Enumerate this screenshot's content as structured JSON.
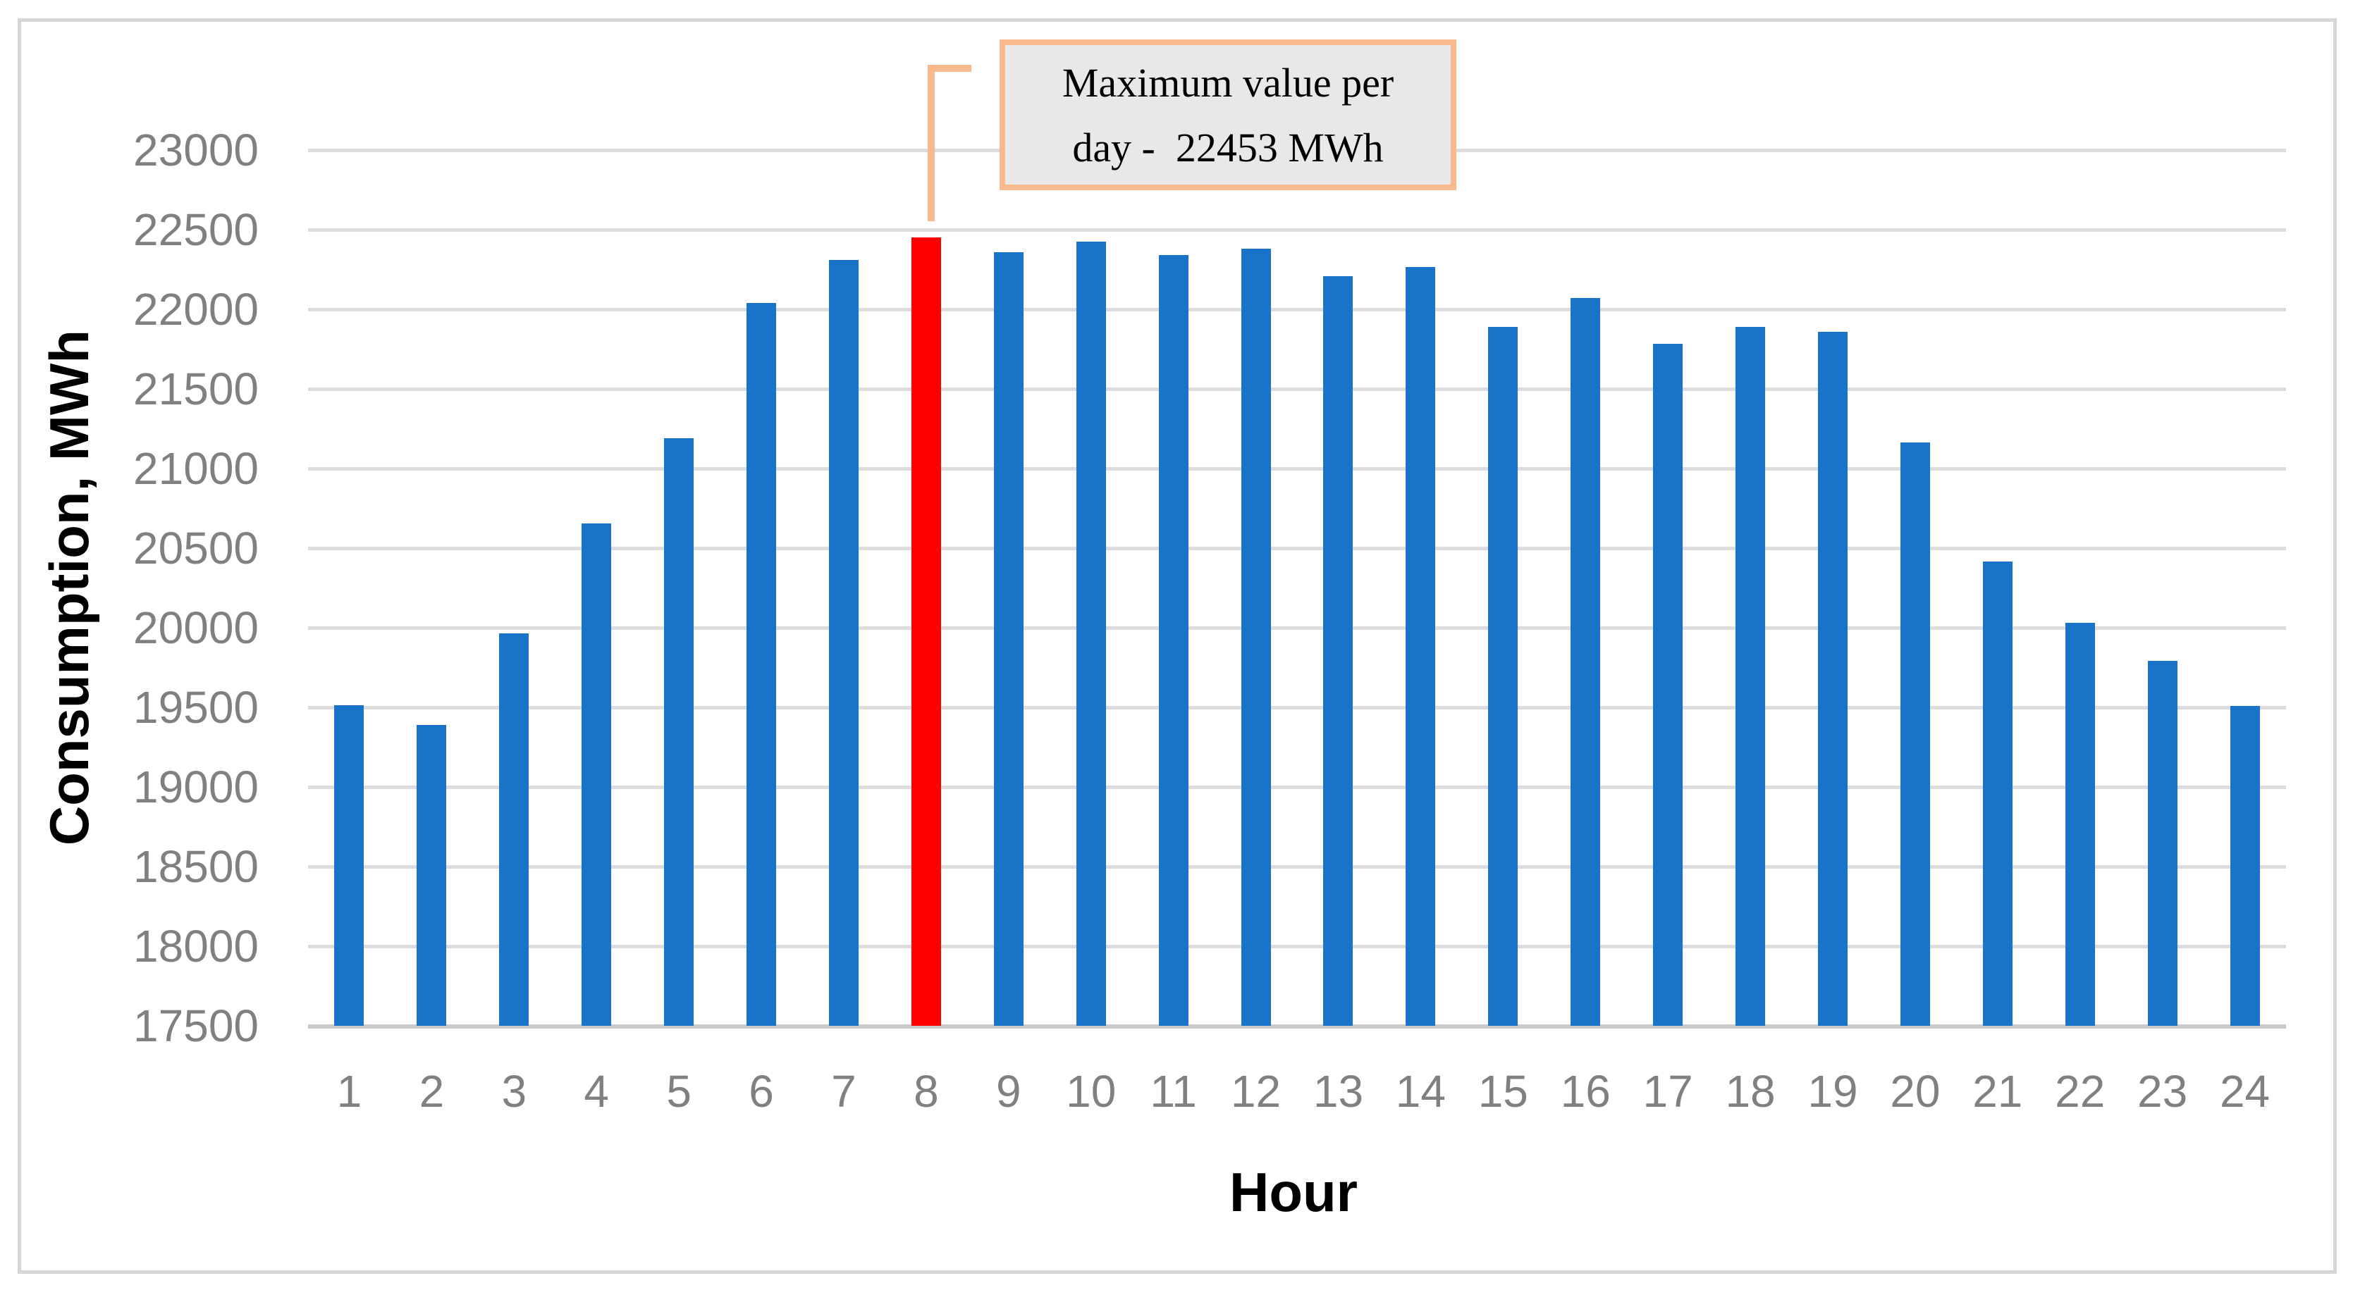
{
  "figure": {
    "background_color": "#FFFFFF",
    "border_color": "#D6D6D6"
  },
  "chart_data": {
    "type": "bar",
    "title": "",
    "xlabel": "Hour",
    "ylabel": "Consumption, MWh",
    "categories": [
      1,
      2,
      3,
      4,
      5,
      6,
      7,
      8,
      9,
      10,
      11,
      12,
      13,
      14,
      15,
      16,
      17,
      18,
      19,
      20,
      21,
      22,
      23,
      24
    ],
    "values": [
      19515,
      19390,
      19965,
      20655,
      21190,
      22040,
      22310,
      22453,
      22360,
      22425,
      22340,
      22380,
      22210,
      22265,
      21890,
      22070,
      21785,
      21890,
      21860,
      21165,
      20415,
      20030,
      19790,
      19510
    ],
    "ylim": [
      17500,
      23000
    ],
    "ytick_step": 500,
    "ytick_labels": [
      "17500",
      "18000",
      "18500",
      "19000",
      "19500",
      "20000",
      "20500",
      "21000",
      "21500",
      "22000",
      "22500",
      "23000"
    ],
    "grid": true,
    "legend_position": "none",
    "bar_color": "#1873C9",
    "highlight_color": "#FF0000",
    "highlight_hour": 8,
    "gridline_color": "#DCDCDC",
    "axis_line_color": "#C9C9C9",
    "tick_label_color": "#808080",
    "annotation": {
      "line1": "Maximum value per",
      "line2": "day -  22453 MWh",
      "max_value": 22453,
      "max_value_unit": "MWh",
      "border_color": "#F8B98E",
      "fill_color": "#E9E8E8"
    }
  }
}
